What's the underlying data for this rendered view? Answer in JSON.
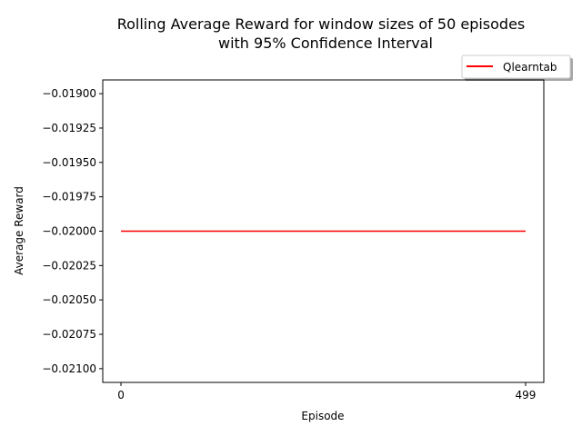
{
  "chart_data": {
    "type": "line",
    "title": [
      "Rolling Average Reward for window sizes of 50 episodes",
      "with 95% Confidence Interval"
    ],
    "xlabel": "Episode",
    "ylabel": "Average Reward",
    "xlim": [
      -22.45,
      521.45
    ],
    "ylim": [
      -0.0211,
      -0.0189
    ],
    "xticks": [
      0,
      499
    ],
    "xtick_labels": [
      "0",
      "499"
    ],
    "yticks": [
      -0.019,
      -0.01925,
      -0.0195,
      -0.01975,
      -0.02,
      -0.02025,
      -0.0205,
      -0.02075,
      -0.021
    ],
    "ytick_labels": [
      "−0.01900",
      "−0.01925",
      "−0.01950",
      "−0.01975",
      "−0.02000",
      "−0.02025",
      "−0.02050",
      "−0.02075",
      "−0.02100"
    ],
    "grid": false,
    "legend_position": "top-right, above plot",
    "series": [
      {
        "name": "Qlearntab",
        "color": "#ff0000",
        "x": [
          0,
          499
        ],
        "y": [
          -0.02,
          -0.02
        ]
      }
    ]
  }
}
